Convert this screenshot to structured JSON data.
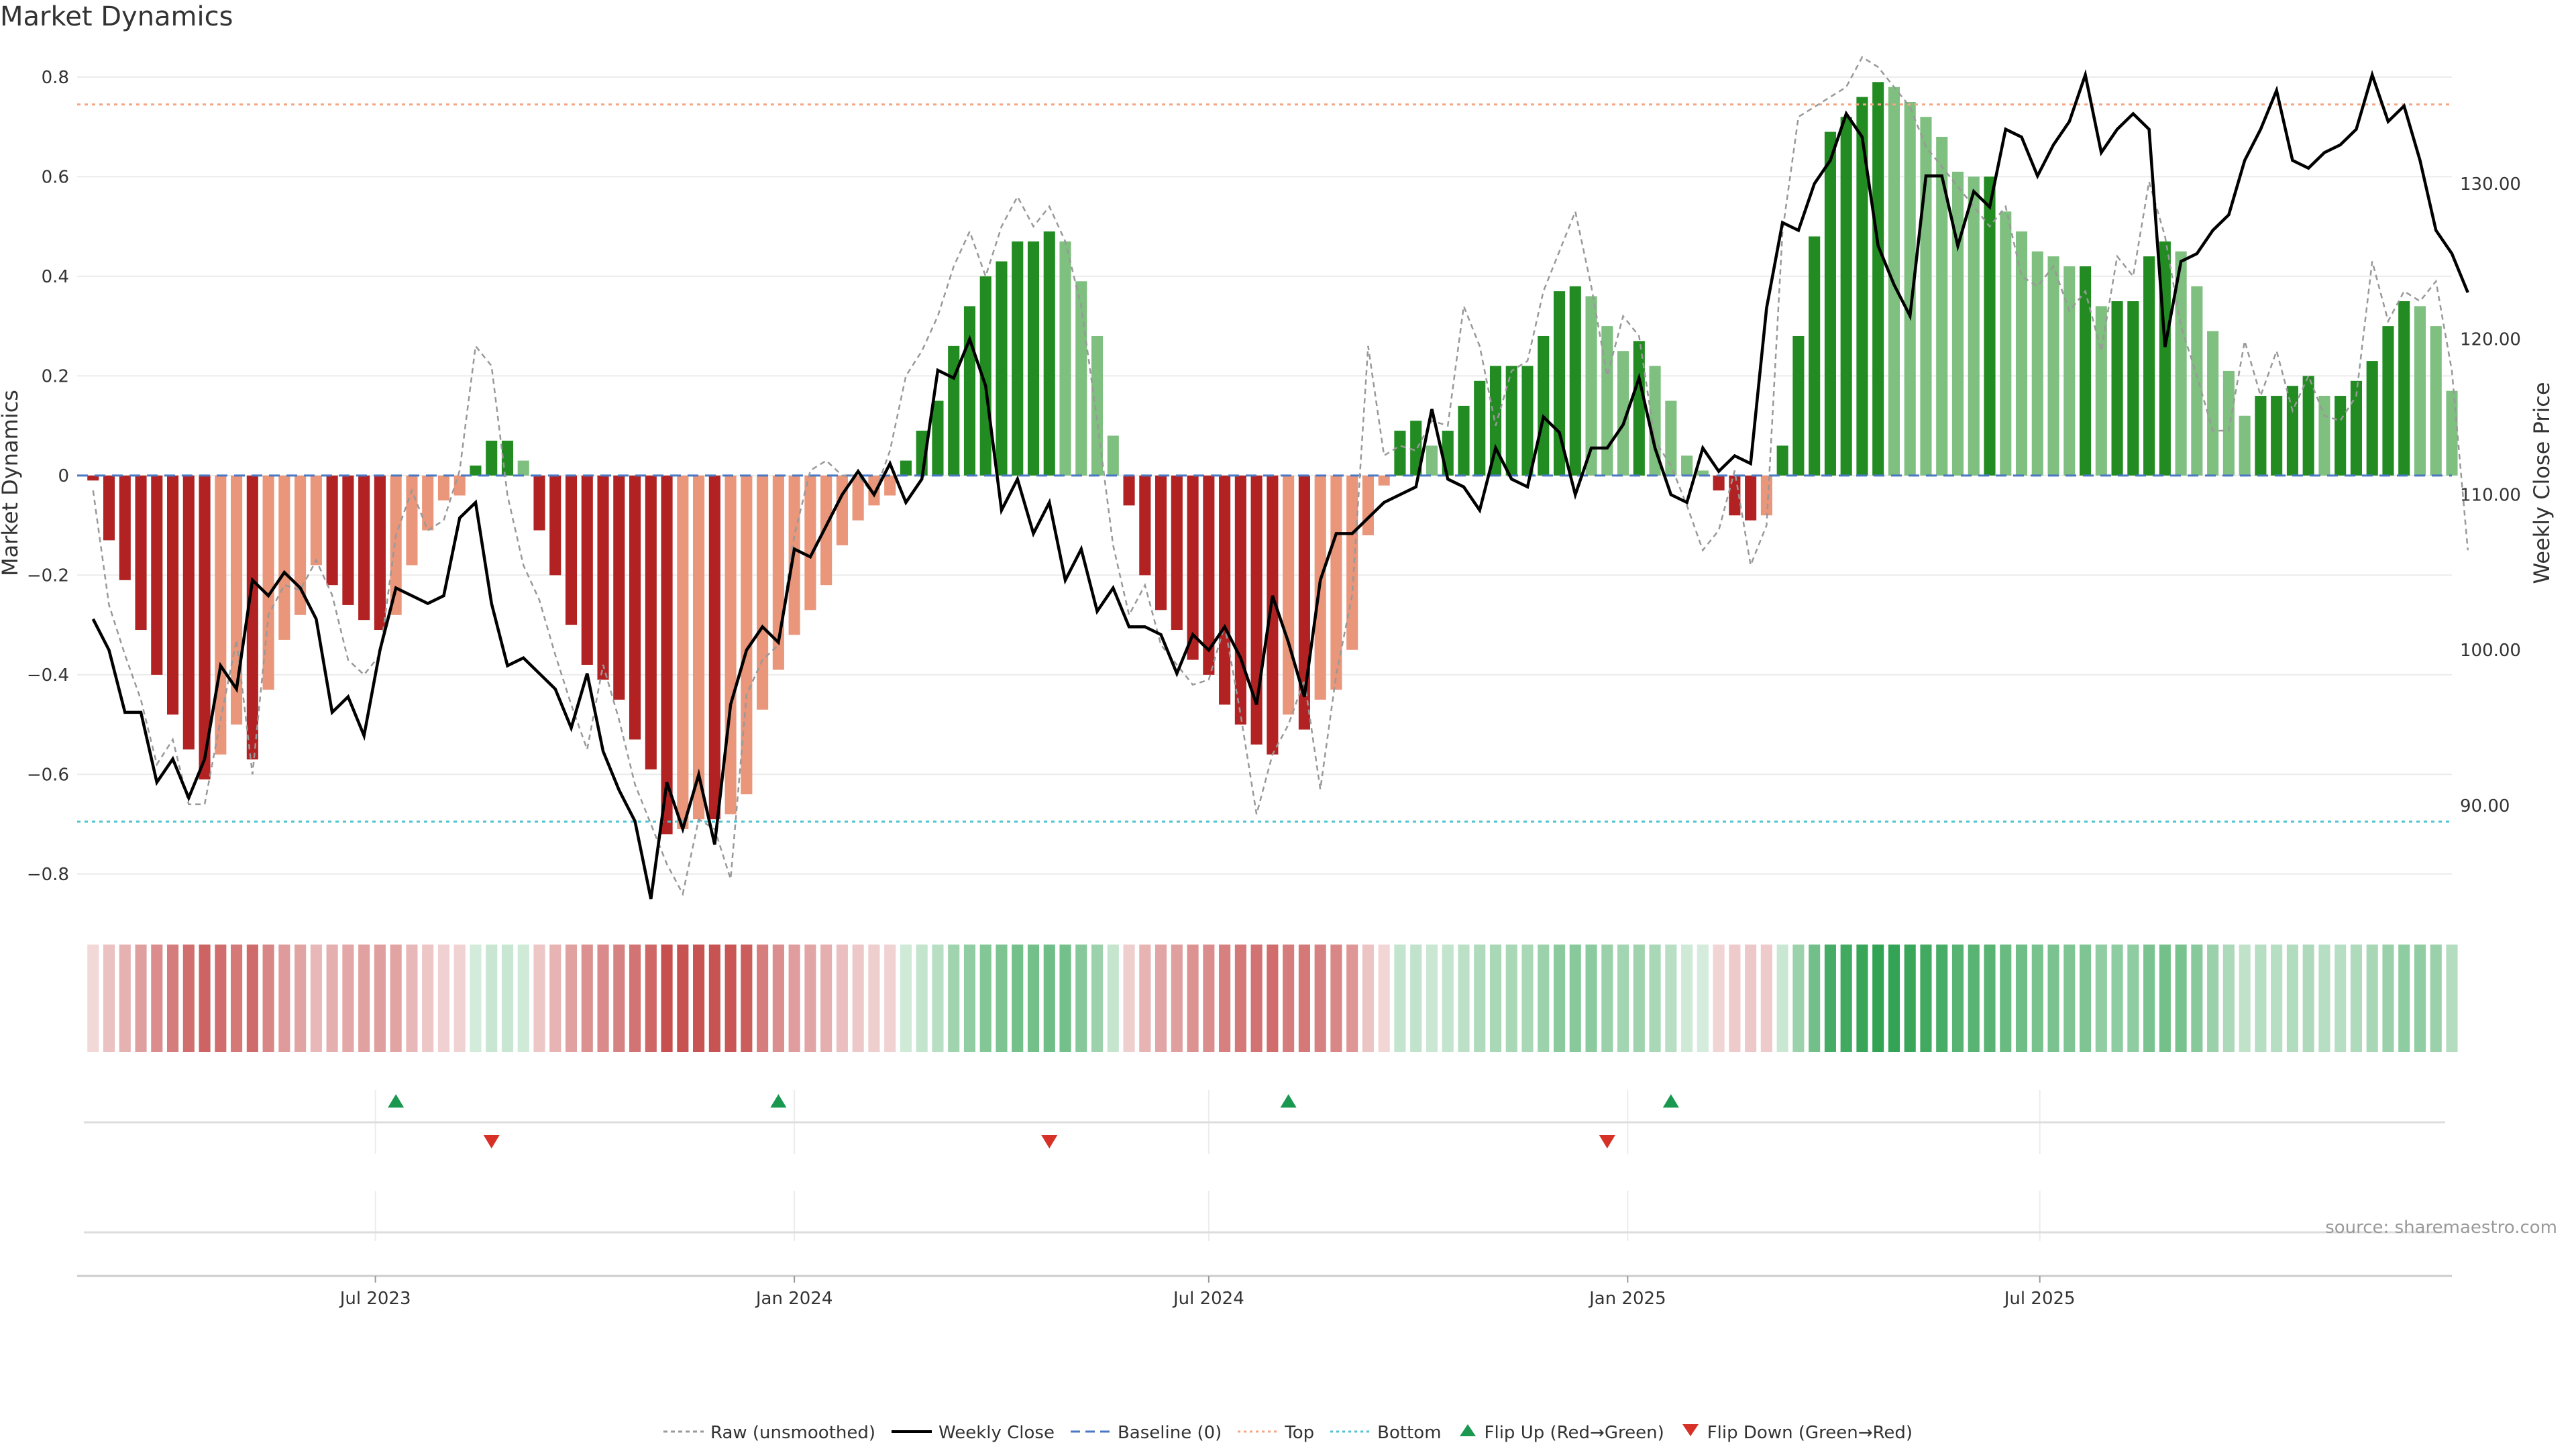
{
  "title": "Market Dynamics",
  "source": "source: sharemaestro.com",
  "colors": {
    "strong_green": "#228b22",
    "light_green": "#7fbf7f",
    "strong_red": "#b22222",
    "light_red": "#e9967a",
    "raw": "#999999",
    "close": "#000000",
    "baseline": "#4a78c4",
    "top": "#f4a582",
    "bottom": "#4fc3d0",
    "flip_up": "#1a9850",
    "flip_down": "#d73027"
  },
  "chart_data": {
    "type": "bar",
    "ylabel_left": "Market Dynamics",
    "ylabel_right": "Weekly Close Price",
    "ylim_left": [
      -0.85,
      0.82
    ],
    "ylim_right": [
      84.0,
      137.5
    ],
    "yticks_left": [
      "0.8",
      "0.6",
      "0.4",
      "0.2",
      "0",
      "−0.2",
      "−0.4",
      "−0.6",
      "−0.8"
    ],
    "yticks_right": [
      "130.00",
      "120.00",
      "110.00",
      "100.00",
      "90.00"
    ],
    "x_tick_labels": [
      "Jul 2023",
      "Jan 2024",
      "Jul 2024",
      "Jan 2025",
      "Jul 2025"
    ],
    "x_tick_dates": [
      "2023-07-01",
      "2024-01-01",
      "2024-07-01",
      "2025-01-01",
      "2025-07-01"
    ],
    "x_start": "2023-02-20",
    "x_end": "2025-12-29",
    "week_start": "2023-02-27",
    "week_step_days": 7,
    "top_level": 0.745,
    "bottom_level": -0.695,
    "baseline_level": 0,
    "series": [
      {
        "name": "Market Dynamics",
        "values": [
          -0.01,
          -0.13,
          -0.21,
          -0.31,
          -0.4,
          -0.48,
          -0.55,
          -0.61,
          -0.56,
          -0.5,
          -0.57,
          -0.43,
          -0.33,
          -0.28,
          -0.18,
          -0.22,
          -0.26,
          -0.29,
          -0.31,
          -0.28,
          -0.18,
          -0.11,
          -0.05,
          -0.04,
          0.02,
          0.07,
          0.07,
          0.03,
          -0.11,
          -0.2,
          -0.3,
          -0.38,
          -0.41,
          -0.45,
          -0.53,
          -0.59,
          -0.72,
          -0.71,
          -0.69,
          -0.69,
          -0.68,
          -0.64,
          -0.47,
          -0.39,
          -0.32,
          -0.27,
          -0.22,
          -0.14,
          -0.09,
          -0.06,
          -0.04,
          0.03,
          0.09,
          0.15,
          0.26,
          0.34,
          0.4,
          0.43,
          0.47,
          0.47,
          0.49,
          0.47,
          0.39,
          0.28,
          0.08,
          -0.06,
          -0.2,
          -0.27,
          -0.31,
          -0.37,
          -0.4,
          -0.46,
          -0.5,
          -0.54,
          -0.56,
          -0.48,
          -0.51,
          -0.45,
          -0.43,
          -0.35,
          -0.12,
          -0.02,
          0.09,
          0.11,
          0.06,
          0.09,
          0.14,
          0.19,
          0.22,
          0.22,
          0.22,
          0.28,
          0.37,
          0.38,
          0.36,
          0.3,
          0.25,
          0.27,
          0.22,
          0.15,
          0.04,
          0.01,
          -0.03,
          -0.08,
          -0.09,
          -0.08,
          0.06,
          0.28,
          0.48,
          0.69,
          0.72,
          0.76,
          0.79,
          0.78,
          0.75,
          0.72,
          0.68,
          0.61,
          0.6,
          0.6,
          0.53,
          0.49,
          0.45,
          0.44,
          0.42,
          0.42,
          0.34,
          0.35,
          0.35,
          0.44,
          0.47,
          0.45,
          0.38,
          0.29,
          0.21,
          0.12,
          0.16,
          0.16,
          0.18,
          0.2,
          0.16,
          0.16,
          0.19,
          0.23,
          0.3,
          0.35,
          0.34,
          0.3,
          0.17
        ]
      },
      {
        "name": "Raw (unsmoothed)",
        "values": [
          -0.03,
          -0.26,
          -0.36,
          -0.45,
          -0.58,
          -0.53,
          -0.66,
          -0.66,
          -0.49,
          -0.33,
          -0.6,
          -0.28,
          -0.22,
          -0.23,
          -0.17,
          -0.24,
          -0.37,
          -0.4,
          -0.36,
          -0.12,
          -0.03,
          -0.11,
          -0.09,
          0.01,
          0.26,
          0.22,
          -0.04,
          -0.18,
          -0.25,
          -0.36,
          -0.46,
          -0.55,
          -0.38,
          -0.49,
          -0.62,
          -0.7,
          -0.78,
          -0.84,
          -0.69,
          -0.71,
          -0.81,
          -0.44,
          -0.37,
          -0.34,
          -0.12,
          0.01,
          0.03,
          0.0,
          0.0,
          -0.04,
          0.05,
          0.2,
          0.25,
          0.32,
          0.42,
          0.49,
          0.4,
          0.5,
          0.56,
          0.5,
          0.54,
          0.47,
          0.34,
          0.11,
          -0.14,
          -0.28,
          -0.22,
          -0.34,
          -0.38,
          -0.42,
          -0.41,
          -0.3,
          -0.48,
          -0.68,
          -0.56,
          -0.5,
          -0.41,
          -0.63,
          -0.4,
          -0.24,
          0.26,
          0.04,
          0.06,
          0.05,
          0.11,
          0.1,
          0.34,
          0.26,
          0.1,
          0.21,
          0.23,
          0.37,
          0.45,
          0.53,
          0.38,
          0.2,
          0.32,
          0.28,
          0.07,
          0.02,
          -0.06,
          -0.15,
          -0.11,
          0.01,
          -0.18,
          -0.1,
          0.49,
          0.72,
          0.74,
          0.76,
          0.78,
          0.84,
          0.82,
          0.78,
          0.74,
          0.66,
          0.62,
          0.58,
          0.54,
          0.5,
          0.54,
          0.4,
          0.38,
          0.42,
          0.33,
          0.37,
          0.25,
          0.44,
          0.4,
          0.59,
          0.48,
          0.3,
          0.2,
          0.09,
          0.09,
          0.27,
          0.16,
          0.25,
          0.13,
          0.2,
          0.12,
          0.11,
          0.16,
          0.43,
          0.31,
          0.37,
          0.35,
          0.39,
          0.21,
          -0.15
        ]
      },
      {
        "name": "Weekly Close",
        "values": [
          102.0,
          100.0,
          96.0,
          96.0,
          91.5,
          93.0,
          90.5,
          93.0,
          99.0,
          97.5,
          104.5,
          103.5,
          105.0,
          104.0,
          102.0,
          96.0,
          97.0,
          94.5,
          100.0,
          104.0,
          103.5,
          103.0,
          103.5,
          108.5,
          109.5,
          103.0,
          99.0,
          99.5,
          98.5,
          97.5,
          95.0,
          98.5,
          93.5,
          91.0,
          89.0,
          84.0,
          91.5,
          88.5,
          92.0,
          87.5,
          96.5,
          100.0,
          101.5,
          100.5,
          106.5,
          106.0,
          108.0,
          110.0,
          111.5,
          110.0,
          112.0,
          109.5,
          111.0,
          118.0,
          117.5,
          120.0,
          117.0,
          109.0,
          111.0,
          107.5,
          109.5,
          104.5,
          106.5,
          102.5,
          104.0,
          101.5,
          101.5,
          101.0,
          98.5,
          101.0,
          100.0,
          101.5,
          99.5,
          96.5,
          103.5,
          100.5,
          97.0,
          104.5,
          107.5,
          107.5,
          108.5,
          109.5,
          110.0,
          110.5,
          115.5,
          111.0,
          110.5,
          109.0,
          113.0,
          111.0,
          110.5,
          115.0,
          114.0,
          110.0,
          113.0,
          113.0,
          114.5,
          117.5,
          113.0,
          110.0,
          109.5,
          113.0,
          111.5,
          112.5,
          112.0,
          122.0,
          127.5,
          127.0,
          130.0,
          131.5,
          134.5,
          133.0,
          126.0,
          123.5,
          121.5,
          130.5,
          130.5,
          126.0,
          129.5,
          128.5,
          133.5,
          133.0,
          130.5,
          132.5,
          134.0,
          137.0,
          132.0,
          133.5,
          134.5,
          133.5,
          119.5,
          125.0,
          125.5,
          127.0,
          128.0,
          131.5,
          133.5,
          136.0,
          131.5,
          131.0,
          132.0,
          132.5,
          133.5,
          137.0,
          134.0,
          135.0,
          131.5,
          127.0,
          125.5,
          123.0
        ]
      }
    ],
    "flips_up": [
      "2023-07-10",
      "2023-12-25",
      "2024-08-05",
      "2025-01-20"
    ],
    "flips_down": [
      "2023-08-21",
      "2024-04-22",
      "2024-12-23"
    ],
    "legend": [
      "Raw (unsmoothed)",
      "Weekly Close",
      "Baseline (0)",
      "Top",
      "Bottom",
      "Flip Up (Red→Green)",
      "Flip Down (Green→Red)"
    ]
  }
}
